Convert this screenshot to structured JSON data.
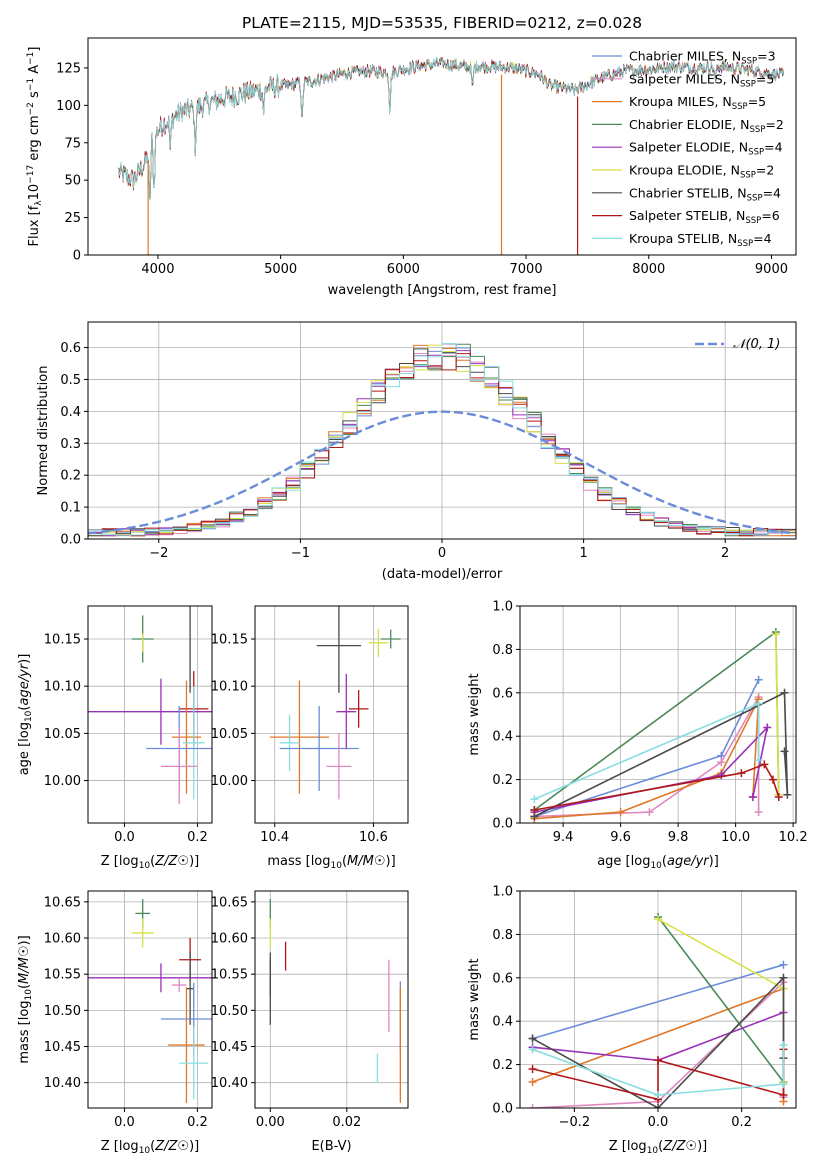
{
  "chart_data": [
    {
      "id": "spectrum",
      "type": "line",
      "title": "PLATE=2115, MJD=53535, FIBERID=0212, z=0.028",
      "xlabel": "wavelength [Angstrom, rest frame]",
      "ylabel": "Flux [fλ10⁻¹⁷ erg cm⁻² s⁻¹ A⁻¹]",
      "xlim": [
        3430,
        9200
      ],
      "ylim": [
        0,
        145
      ],
      "xticks": [
        4000,
        5000,
        6000,
        7000,
        8000,
        9000
      ],
      "yticks": [
        0,
        25,
        50,
        75,
        100,
        125
      ],
      "grid": false,
      "legend_position": "right",
      "continuum": [
        [
          3680,
          55
        ],
        [
          3800,
          50
        ],
        [
          3900,
          62
        ],
        [
          3950,
          78
        ],
        [
          4050,
          88
        ],
        [
          4200,
          96
        ],
        [
          4300,
          98
        ],
        [
          4500,
          104
        ],
        [
          4700,
          108
        ],
        [
          4900,
          112
        ],
        [
          5100,
          114
        ],
        [
          5300,
          117
        ],
        [
          5500,
          121
        ],
        [
          5700,
          123
        ],
        [
          5900,
          122
        ],
        [
          6100,
          126
        ],
        [
          6300,
          128
        ],
        [
          6500,
          126
        ],
        [
          6700,
          126
        ],
        [
          6900,
          125
        ],
        [
          7100,
          121
        ],
        [
          7200,
          113
        ],
        [
          7400,
          110
        ],
        [
          7600,
          118
        ],
        [
          7800,
          123
        ],
        [
          8000,
          124
        ],
        [
          8200,
          126
        ],
        [
          8400,
          125
        ],
        [
          8600,
          126
        ],
        [
          8800,
          124
        ],
        [
          9000,
          121
        ],
        [
          9100,
          120
        ]
      ],
      "absorption_lines": [
        [
          3934,
          40
        ],
        [
          3968,
          35
        ],
        [
          4101,
          20
        ],
        [
          4304,
          25
        ],
        [
          4861,
          15
        ],
        [
          5175,
          25
        ],
        [
          5890,
          25
        ],
        [
          6563,
          15
        ],
        [
          8542,
          10
        ]
      ],
      "spike_drops": [
        {
          "x": 3920,
          "y": 0,
          "series": "Kroupa MILES"
        },
        {
          "x": 6800,
          "y": 0,
          "series": "Kroupa MILES"
        },
        {
          "x": 7420,
          "y": 0,
          "series": "Salpeter STELIB"
        }
      ],
      "series": [
        {
          "name": "Chabrier MILES, N_SSP=3",
          "label": "Chabrier MILES, N",
          "sub": "SSP",
          "suffix": "=3",
          "color": "#6b8cd8"
        },
        {
          "name": "Salpeter MILES, N_SSP=5",
          "label": "Salpeter MILES, N",
          "sub": "SSP",
          "suffix": "=5",
          "color": "#e088c0"
        },
        {
          "name": "Kroupa MILES, N_SSP=5",
          "label": "Kroupa MILES, N",
          "sub": "SSP",
          "suffix": "=5",
          "color": "#e07828"
        },
        {
          "name": "Chabrier ELODIE, N_SSP=2",
          "label": "Chabrier ELODIE, N",
          "sub": "SSP",
          "suffix": "=2",
          "color": "#4a8a5a"
        },
        {
          "name": "Salpeter ELODIE, N_SSP=4",
          "label": "Salpeter ELODIE, N",
          "sub": "SSP",
          "suffix": "=4",
          "color": "#9a30b8"
        },
        {
          "name": "Kroupa ELODIE, N_SSP=2",
          "label": "Kroupa ELODIE, N",
          "sub": "SSP",
          "suffix": "=2",
          "color": "#d8e048"
        },
        {
          "name": "Chabrier STELIB, N_SSP=4",
          "label": "Chabrier STELIB, N",
          "sub": "SSP",
          "suffix": "=4",
          "color": "#4a4a4a"
        },
        {
          "name": "Salpeter STELIB, N_SSP=6",
          "label": "Salpeter STELIB, N",
          "sub": "SSP",
          "suffix": "=6",
          "color": "#b01818"
        },
        {
          "name": "Kroupa STELIB, N_SSP=4",
          "label": "Kroupa STELIB, N",
          "sub": "SSP",
          "suffix": "=4",
          "color": "#88dde0"
        }
      ]
    },
    {
      "id": "residuals",
      "type": "line",
      "xlabel": "(data-model)/error",
      "ylabel": "Normed distribution",
      "xlim": [
        -2.5,
        2.5
      ],
      "ylim": [
        0,
        0.68
      ],
      "xticks": [
        -2,
        -1,
        0,
        1,
        2
      ],
      "yticks": [
        0.0,
        0.1,
        0.2,
        0.3,
        0.4,
        0.5,
        0.6
      ],
      "grid": true,
      "legend_position": "top-right",
      "legend": "𝒩(0, 1)",
      "gaussian": {
        "mu": 0,
        "sigma": 1,
        "color": "#6b8cd8"
      },
      "histogram_bin_width": 0.1,
      "histogram_envelope": {
        "center": 0,
        "sigma": 0.66,
        "peak": 0.56
      }
    },
    {
      "id": "z-age",
      "type": "scatter",
      "xlabel": "Z [log10(Z/Z☉)]",
      "ylabel": "age  [log10(age/yr)]",
      "xlim": [
        -0.1,
        0.24
      ],
      "ylim": [
        9.955,
        10.185
      ],
      "xticks": [
        0.0,
        0.2
      ],
      "yticks": [
        10.0,
        10.05,
        10.1,
        10.15
      ],
      "grid": true,
      "points": [
        {
          "x": 0.05,
          "xerr": 0.03,
          "y": 10.15,
          "yerr": 0.025,
          "c": 4
        },
        {
          "x": 0.1,
          "xerr": 0.2,
          "y": 10.073,
          "yerr": 0.035,
          "c": 5
        },
        {
          "x": 0.18,
          "xerr": 0.0,
          "y": 10.143,
          "yerr": 0.05,
          "c": 7
        },
        {
          "x": 0.05,
          "xerr": 0.0,
          "y": 10.146,
          "yerr": 0.01,
          "c": 6
        },
        {
          "x": 0.19,
          "xerr": 0.04,
          "y": 10.076,
          "yerr": 0.04,
          "c": 8
        },
        {
          "x": 0.17,
          "xerr": 0.04,
          "y": 10.046,
          "yerr": 0.06,
          "c": 3
        },
        {
          "x": 0.19,
          "xerr": 0.03,
          "y": 10.04,
          "yerr": 0.06,
          "c": 9
        },
        {
          "x": 0.15,
          "xerr": 0.09,
          "y": 10.034,
          "yerr": 0.045,
          "c": 1
        },
        {
          "x": 0.15,
          "xerr": 0.05,
          "y": 10.015,
          "yerr": 0.04,
          "c": 2
        }
      ]
    },
    {
      "id": "mass-age",
      "type": "scatter",
      "xlabel": "mass [log10(M/M☉)]",
      "ylabel": "",
      "xlim": [
        10.36,
        10.67
      ],
      "ylim": [
        9.955,
        10.185
      ],
      "xticks": [
        10.4,
        10.6
      ],
      "yticks": [
        10.0,
        10.05,
        10.1,
        10.15
      ],
      "grid": true,
      "points": [
        {
          "x": 10.635,
          "xerr": 0.02,
          "y": 10.15,
          "yerr": 0.01,
          "c": 4
        },
        {
          "x": 10.61,
          "xerr": 0.02,
          "y": 10.146,
          "yerr": 0.015,
          "c": 6
        },
        {
          "x": 10.53,
          "xerr": 0.045,
          "y": 10.143,
          "yerr": 0.05,
          "c": 7
        },
        {
          "x": 10.57,
          "xerr": 0.02,
          "y": 10.076,
          "yerr": 0.02,
          "c": 8
        },
        {
          "x": 10.545,
          "xerr": 0.02,
          "y": 10.073,
          "yerr": 0.04,
          "c": 5
        },
        {
          "x": 10.45,
          "xerr": 0.06,
          "y": 10.046,
          "yerr": 0.06,
          "c": 3
        },
        {
          "x": 10.43,
          "xerr": 0.02,
          "y": 10.04,
          "yerr": 0.03,
          "c": 9
        },
        {
          "x": 10.49,
          "xerr": 0.08,
          "y": 10.034,
          "yerr": 0.045,
          "c": 1
        },
        {
          "x": 10.53,
          "xerr": 0.025,
          "y": 10.015,
          "yerr": 0.035,
          "c": 2
        }
      ]
    },
    {
      "id": "age-weight",
      "type": "line",
      "xlabel": "age  [log10(age/yr)]",
      "ylabel": "mass weight",
      "xlim": [
        9.25,
        10.21
      ],
      "ylim": [
        0,
        1.0
      ],
      "xticks": [
        9.4,
        9.6,
        9.8,
        10.0,
        10.2
      ],
      "yticks": [
        0.0,
        0.2,
        0.4,
        0.6,
        0.8,
        1.0
      ],
      "grid": true,
      "series": [
        {
          "c": 1,
          "points": [
            [
              9.3,
              0.03
            ],
            [
              9.95,
              0.31
            ],
            [
              10.08,
              0.66
            ]
          ]
        },
        {
          "c": 2,
          "points": [
            [
              9.3,
              0.03
            ],
            [
              9.7,
              0.05
            ],
            [
              9.95,
              0.28
            ],
            [
              10.08,
              0.58
            ],
            [
              10.08,
              0.05
            ]
          ]
        },
        {
          "c": 3,
          "points": [
            [
              9.3,
              0.02
            ],
            [
              9.6,
              0.05
            ],
            [
              9.95,
              0.23
            ],
            [
              10.08,
              0.57
            ],
            [
              10.06,
              0.12
            ]
          ]
        },
        {
          "c": 4,
          "points": [
            [
              9.3,
              0.06
            ],
            [
              10.14,
              0.88
            ],
            [
              10.15,
              0.13
            ]
          ]
        },
        {
          "c": 5,
          "points": [
            [
              9.3,
              0.05
            ],
            [
              9.95,
              0.22
            ],
            [
              10.11,
              0.44
            ],
            [
              10.06,
              0.12
            ]
          ]
        },
        {
          "c": 6,
          "points": [
            [
              10.14,
              0.87
            ],
            [
              10.15,
              0.13
            ]
          ]
        },
        {
          "c": 7,
          "points": [
            [
              9.3,
              0.03
            ],
            [
              10.17,
              0.6
            ],
            [
              10.18,
              0.13
            ],
            [
              10.17,
              0.33
            ]
          ]
        },
        {
          "c": 8,
          "points": [
            [
              9.3,
              0.06
            ],
            [
              10.02,
              0.23
            ],
            [
              10.1,
              0.27
            ],
            [
              10.13,
              0.2
            ],
            [
              10.15,
              0.12
            ]
          ]
        },
        {
          "c": 9,
          "points": [
            [
              9.3,
              0.11
            ],
            [
              10.08,
              0.55
            ],
            [
              10.08,
              0.29
            ]
          ]
        }
      ]
    },
    {
      "id": "z-mass",
      "type": "scatter",
      "xlabel": "Z [log10(Z/Z☉)]",
      "ylabel": "mass [log10(M/M☉)]",
      "xlim": [
        -0.1,
        0.24
      ],
      "ylim": [
        10.365,
        10.665
      ],
      "xticks": [
        0.0,
        0.2
      ],
      "yticks": [
        10.4,
        10.45,
        10.5,
        10.55,
        10.6,
        10.65
      ],
      "grid": true,
      "points": [
        {
          "x": 0.05,
          "xerr": 0.02,
          "y": 10.634,
          "yerr": 0.02,
          "c": 4
        },
        {
          "x": 0.05,
          "xerr": 0.03,
          "y": 10.607,
          "yerr": 0.02,
          "c": 6
        },
        {
          "x": 0.18,
          "xerr": 0.03,
          "y": 10.57,
          "yerr": 0.03,
          "c": 8
        },
        {
          "x": 0.1,
          "xerr": 0.2,
          "y": 10.545,
          "yerr": 0.02,
          "c": 5
        },
        {
          "x": 0.15,
          "xerr": 0.02,
          "y": 10.535,
          "yerr": 0.01,
          "c": 2
        },
        {
          "x": 0.18,
          "xerr": 0.01,
          "y": 10.53,
          "yerr": 0.05,
          "c": 7
        },
        {
          "x": 0.19,
          "xerr": 0.09,
          "y": 10.488,
          "yerr": 0.05,
          "c": 1
        },
        {
          "x": 0.17,
          "xerr": 0.05,
          "y": 10.452,
          "yerr": 0.08,
          "c": 3
        },
        {
          "x": 0.19,
          "xerr": 0.04,
          "y": 10.427,
          "yerr": 0.05,
          "c": 9
        }
      ]
    },
    {
      "id": "ebv-mass",
      "type": "scatter",
      "xlabel": "E(B-V)",
      "ylabel": "",
      "xlim": [
        -0.004,
        0.036
      ],
      "ylim": [
        10.365,
        10.665
      ],
      "xticks": [
        0.0,
        0.02
      ],
      "yticks": [
        10.4,
        10.45,
        10.5,
        10.55,
        10.6,
        10.65
      ],
      "grid": true,
      "points": [
        {
          "x": 0.0,
          "xerr": 0,
          "y": 10.634,
          "yerr": 0.02,
          "c": 4
        },
        {
          "x": 0.0,
          "xerr": 0,
          "y": 10.607,
          "yerr": 0.02,
          "c": 6
        },
        {
          "x": 0.0,
          "xerr": 0,
          "y": 10.545,
          "yerr": 0.025,
          "c": 5
        },
        {
          "x": 0.0,
          "xerr": 0,
          "y": 10.53,
          "yerr": 0.05,
          "c": 7
        },
        {
          "x": 0.004,
          "xerr": 0,
          "y": 10.575,
          "yerr": 0.02,
          "c": 8
        },
        {
          "x": 0.031,
          "xerr": 0,
          "y": 10.52,
          "yerr": 0.05,
          "c": 2
        },
        {
          "x": 0.034,
          "xerr": 0,
          "y": 10.49,
          "yerr": 0.05,
          "c": 1
        },
        {
          "x": 0.034,
          "xerr": 0,
          "y": 10.452,
          "yerr": 0.08,
          "c": 3
        },
        {
          "x": 0.028,
          "xerr": 0,
          "y": 10.42,
          "yerr": 0.02,
          "c": 9
        }
      ]
    },
    {
      "id": "z-weight",
      "type": "line",
      "xlabel": "Z [log10(Z/Z☉)]",
      "ylabel": "mass weight",
      "xlim": [
        -0.33,
        0.33
      ],
      "ylim": [
        0,
        1.0
      ],
      "xticks": [
        -0.2,
        0.0,
        0.2
      ],
      "yticks": [
        0.0,
        0.2,
        0.4,
        0.6,
        0.8,
        1.0
      ],
      "grid": true,
      "series": [
        {
          "c": 1,
          "points": [
            [
              -0.3,
              0.32
            ],
            [
              0.3,
              0.66
            ]
          ]
        },
        {
          "c": 2,
          "points": [
            [
              -0.3,
              0.0
            ],
            [
              0.0,
              0.03
            ],
            [
              0.3,
              0.58
            ],
            [
              0.3,
              0.05
            ]
          ]
        },
        {
          "c": 3,
          "points": [
            [
              -0.3,
              0.12
            ],
            [
              0.3,
              0.55
            ],
            [
              0.3,
              0.03
            ]
          ]
        },
        {
          "c": 4,
          "points": [
            [
              0.0,
              0.88
            ],
            [
              0.3,
              0.12
            ]
          ]
        },
        {
          "c": 5,
          "points": [
            [
              -0.3,
              0.28
            ],
            [
              0.0,
              0.22
            ],
            [
              0.3,
              0.44
            ],
            [
              0.3,
              0.12
            ]
          ]
        },
        {
          "c": 6,
          "points": [
            [
              0.0,
              0.87
            ],
            [
              0.3,
              0.55
            ],
            [
              0.3,
              0.12
            ]
          ]
        },
        {
          "c": 7,
          "points": [
            [
              -0.3,
              0.32
            ],
            [
              0.0,
              0.0
            ],
            [
              0.3,
              0.6
            ],
            [
              0.3,
              0.23
            ]
          ]
        },
        {
          "c": 8,
          "points": [
            [
              -0.3,
              0.18
            ],
            [
              0.0,
              0.04
            ],
            [
              0.0,
              0.22
            ],
            [
              0.3,
              0.06
            ],
            [
              0.3,
              0.27
            ]
          ]
        },
        {
          "c": 9,
          "points": [
            [
              -0.3,
              0.27
            ],
            [
              0.0,
              0.06
            ],
            [
              0.3,
              0.11
            ],
            [
              0.3,
              0.29
            ]
          ]
        }
      ]
    }
  ]
}
